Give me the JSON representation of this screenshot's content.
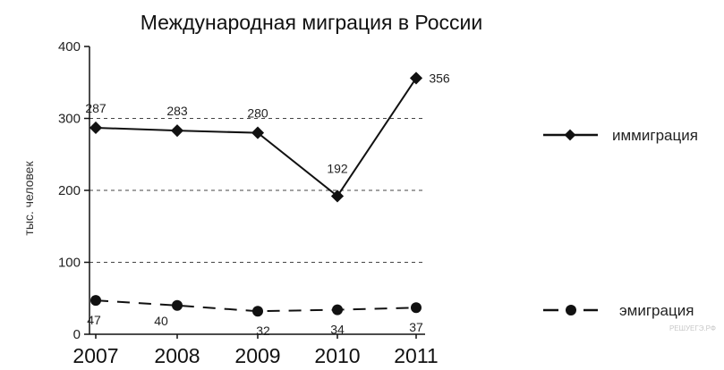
{
  "watermark": "РЕШУЕГЭ.РФ",
  "chart_data": {
    "type": "line",
    "title": "Международная миграция в России",
    "xlabel": "",
    "ylabel": "тыс. человек",
    "categories": [
      "2007",
      "2008",
      "2009",
      "2010",
      "2011"
    ],
    "ylim": [
      0,
      400
    ],
    "yticks": [
      "0",
      "100",
      "200",
      "300",
      "400"
    ],
    "grid": "horizontal dashed at 100, 200, 300",
    "legend_placement": "right",
    "series": [
      {
        "name": "иммиграция",
        "values": [
          287,
          283,
          280,
          192,
          356
        ],
        "labels": [
          "287",
          "283",
          "280",
          "192",
          "356"
        ],
        "line_style": "solid",
        "marker": "diamond",
        "color": "#111111"
      },
      {
        "name": "эмиграция",
        "values": [
          47,
          40,
          32,
          34,
          37
        ],
        "labels": [
          "47",
          "40",
          "32",
          "34",
          "37"
        ],
        "line_style": "dashed",
        "marker": "circle",
        "color": "#111111"
      }
    ]
  }
}
